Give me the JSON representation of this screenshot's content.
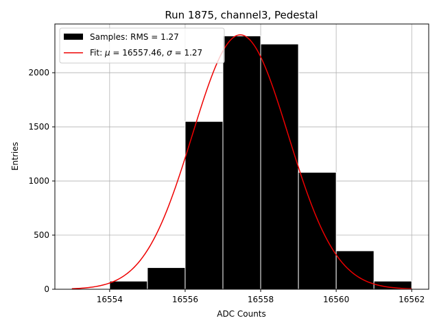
{
  "chart_data": {
    "type": "bar",
    "title": "Run 1875, channel3, Pedestal",
    "xlabel": "ADC Counts",
    "ylabel": "Entries",
    "xlim": [
      16552.55,
      16562.45
    ],
    "ylim": [
      0,
      2450
    ],
    "x_ticks": [
      16554,
      16556,
      16558,
      16560,
      16562
    ],
    "y_ticks": [
      0,
      500,
      1000,
      1500,
      2000
    ],
    "grid": true,
    "legend_position": "top-left",
    "histogram": {
      "label": "Samples: RMS = 1.27",
      "bin_edges": [
        16553.0,
        16554.0,
        16555.0,
        16556.0,
        16557.0,
        16558.0,
        16559.0,
        16560.0,
        16561.0,
        16562.0
      ],
      "counts": [
        5,
        75,
        200,
        1550,
        2340,
        2265,
        1080,
        355,
        75
      ],
      "color": "#000000",
      "edge_color": "#ffffff"
    },
    "fit": {
      "label_prefix": "Fit: ",
      "label_mu": "μ",
      "label_sigma": "σ",
      "label_mu_value": " = 16557.46, ",
      "label_sigma_value": " = 1.27",
      "type": "gaussian",
      "mu": 16557.46,
      "sigma": 1.27,
      "amplitude": 2350,
      "x_range": [
        16553.0,
        16562.0
      ],
      "color": "#ee0000"
    }
  }
}
